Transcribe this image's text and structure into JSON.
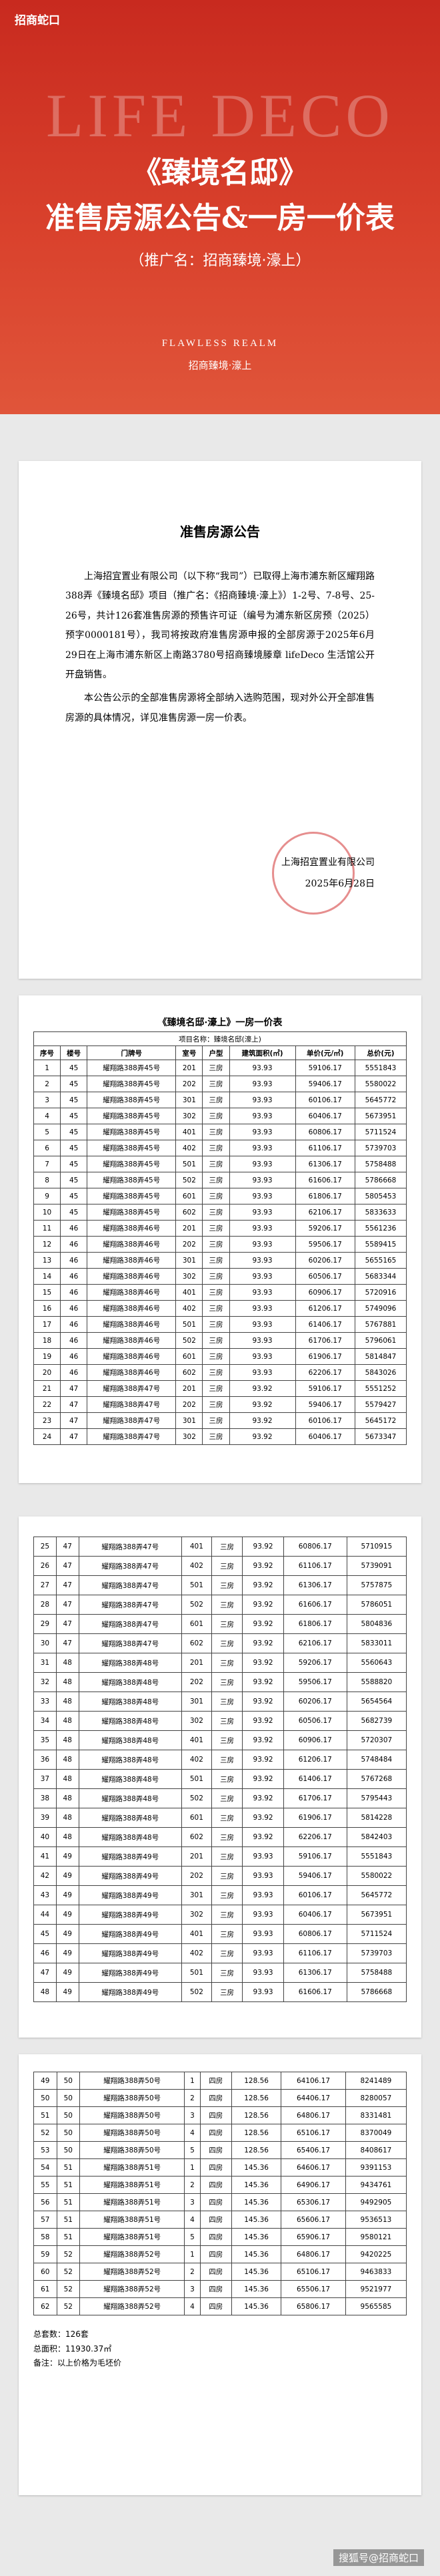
{
  "header": {
    "logo": "招商蛇口",
    "brand_en": "LIFE DECO",
    "title_line1": "《臻境名邸》",
    "title_line2": "准售房源公告&一房一价表",
    "subtitle": "（推广名：招商臻境·濠上）",
    "brand_en2": "FLAWLESS REALM",
    "brand_cn": "招商臻境·濠上"
  },
  "notice": {
    "title": "准售房源公告",
    "paragraphs": [
      "上海招宜置业有限公司（以下称“我司”）已取得上海市浦东新区耀翔路388弄《臻境名邸》项目（推广名：《招商臻境·濠上》）1-2号、7-8号、25-26号，共计126套准售房源的预售许可证（编号为浦东新区房预（2025）预字0000181号），我司将按政府准售房源申报的全部房源于2025年6月29日在上海市浦东新区上南路3780号招商臻境滕章 lifeDeco 生活馆公开开盘销售。",
      "本公告公示的全部准售房源将全部纳入选购范围，现对外公开全部准售房源的具体情况，详见准售房源一房一价表。"
    ],
    "company": "上海招宜置业有限公司",
    "date": "2025年6月28日"
  },
  "price_table": {
    "title": "《臻境名邸·濠上》一房一价表",
    "project": "项目名称：臻境名邸(濠上)",
    "columns": [
      "序号",
      "楼号",
      "门牌号",
      "室号",
      "户型",
      "建筑面积(㎡)",
      "单价(元/㎡)",
      "总价(元)"
    ],
    "pages": [
      {
        "rows": [
          [
            "1",
            "45",
            "耀翔路388弄45号",
            "201",
            "三房",
            "93.93",
            "59106.17",
            "5551843"
          ],
          [
            "2",
            "45",
            "耀翔路388弄45号",
            "202",
            "三房",
            "93.93",
            "59406.17",
            "5580022"
          ],
          [
            "3",
            "45",
            "耀翔路388弄45号",
            "301",
            "三房",
            "93.93",
            "60106.17",
            "5645772"
          ],
          [
            "4",
            "45",
            "耀翔路388弄45号",
            "302",
            "三房",
            "93.93",
            "60406.17",
            "5673951"
          ],
          [
            "5",
            "45",
            "耀翔路388弄45号",
            "401",
            "三房",
            "93.93",
            "60806.17",
            "5711524"
          ],
          [
            "6",
            "45",
            "耀翔路388弄45号",
            "402",
            "三房",
            "93.93",
            "61106.17",
            "5739703"
          ],
          [
            "7",
            "45",
            "耀翔路388弄45号",
            "501",
            "三房",
            "93.93",
            "61306.17",
            "5758488"
          ],
          [
            "8",
            "45",
            "耀翔路388弄45号",
            "502",
            "三房",
            "93.93",
            "61606.17",
            "5786668"
          ],
          [
            "9",
            "45",
            "耀翔路388弄45号",
            "601",
            "三房",
            "93.93",
            "61806.17",
            "5805453"
          ],
          [
            "10",
            "45",
            "耀翔路388弄45号",
            "602",
            "三房",
            "93.93",
            "62106.17",
            "5833633"
          ],
          [
            "11",
            "46",
            "耀翔路388弄46号",
            "201",
            "三房",
            "93.93",
            "59206.17",
            "5561236"
          ],
          [
            "12",
            "46",
            "耀翔路388弄46号",
            "202",
            "三房",
            "93.93",
            "59506.17",
            "5589415"
          ],
          [
            "13",
            "46",
            "耀翔路388弄46号",
            "301",
            "三房",
            "93.93",
            "60206.17",
            "5655165"
          ],
          [
            "14",
            "46",
            "耀翔路388弄46号",
            "302",
            "三房",
            "93.93",
            "60506.17",
            "5683344"
          ],
          [
            "15",
            "46",
            "耀翔路388弄46号",
            "401",
            "三房",
            "93.93",
            "60906.17",
            "5720916"
          ],
          [
            "16",
            "46",
            "耀翔路388弄46号",
            "402",
            "三房",
            "93.93",
            "61206.17",
            "5749096"
          ],
          [
            "17",
            "46",
            "耀翔路388弄46号",
            "501",
            "三房",
            "93.93",
            "61406.17",
            "5767881"
          ],
          [
            "18",
            "46",
            "耀翔路388弄46号",
            "502",
            "三房",
            "93.93",
            "61706.17",
            "5796061"
          ],
          [
            "19",
            "46",
            "耀翔路388弄46号",
            "601",
            "三房",
            "93.93",
            "61906.17",
            "5814847"
          ],
          [
            "20",
            "46",
            "耀翔路388弄46号",
            "602",
            "三房",
            "93.93",
            "62206.17",
            "5843026"
          ],
          [
            "21",
            "47",
            "耀翔路388弄47号",
            "201",
            "三房",
            "93.92",
            "59106.17",
            "5551252"
          ],
          [
            "22",
            "47",
            "耀翔路388弄47号",
            "202",
            "三房",
            "93.92",
            "59406.17",
            "5579427"
          ],
          [
            "23",
            "47",
            "耀翔路388弄47号",
            "301",
            "三房",
            "93.92",
            "60106.17",
            "5645172"
          ],
          [
            "24",
            "47",
            "耀翔路388弄47号",
            "302",
            "三房",
            "93.92",
            "60406.17",
            "5673347"
          ]
        ]
      },
      {
        "rows": [
          [
            "25",
            "47",
            "耀翔路388弄47号",
            "401",
            "三房",
            "93.92",
            "60806.17",
            "5710915"
          ],
          [
            "26",
            "47",
            "耀翔路388弄47号",
            "402",
            "三房",
            "93.92",
            "61106.17",
            "5739091"
          ],
          [
            "27",
            "47",
            "耀翔路388弄47号",
            "501",
            "三房",
            "93.92",
            "61306.17",
            "5757875"
          ],
          [
            "28",
            "47",
            "耀翔路388弄47号",
            "502",
            "三房",
            "93.92",
            "61606.17",
            "5786051"
          ],
          [
            "29",
            "47",
            "耀翔路388弄47号",
            "601",
            "三房",
            "93.92",
            "61806.17",
            "5804836"
          ],
          [
            "30",
            "47",
            "耀翔路388弄47号",
            "602",
            "三房",
            "93.92",
            "62106.17",
            "5833011"
          ],
          [
            "31",
            "48",
            "耀翔路388弄48号",
            "201",
            "三房",
            "93.92",
            "59206.17",
            "5560643"
          ],
          [
            "32",
            "48",
            "耀翔路388弄48号",
            "202",
            "三房",
            "93.92",
            "59506.17",
            "5588820"
          ],
          [
            "33",
            "48",
            "耀翔路388弄48号",
            "301",
            "三房",
            "93.92",
            "60206.17",
            "5654564"
          ],
          [
            "34",
            "48",
            "耀翔路388弄48号",
            "302",
            "三房",
            "93.92",
            "60506.17",
            "5682739"
          ],
          [
            "35",
            "48",
            "耀翔路388弄48号",
            "401",
            "三房",
            "93.92",
            "60906.17",
            "5720307"
          ],
          [
            "36",
            "48",
            "耀翔路388弄48号",
            "402",
            "三房",
            "93.92",
            "61206.17",
            "5748484"
          ],
          [
            "37",
            "48",
            "耀翔路388弄48号",
            "501",
            "三房",
            "93.92",
            "61406.17",
            "5767268"
          ],
          [
            "38",
            "48",
            "耀翔路388弄48号",
            "502",
            "三房",
            "93.92",
            "61706.17",
            "5795443"
          ],
          [
            "39",
            "48",
            "耀翔路388弄48号",
            "601",
            "三房",
            "93.92",
            "61906.17",
            "5814228"
          ],
          [
            "40",
            "48",
            "耀翔路388弄48号",
            "602",
            "三房",
            "93.92",
            "62206.17",
            "5842403"
          ],
          [
            "41",
            "49",
            "耀翔路388弄49号",
            "201",
            "三房",
            "93.93",
            "59106.17",
            "5551843"
          ],
          [
            "42",
            "49",
            "耀翔路388弄49号",
            "202",
            "三房",
            "93.93",
            "59406.17",
            "5580022"
          ],
          [
            "43",
            "49",
            "耀翔路388弄49号",
            "301",
            "三房",
            "93.93",
            "60106.17",
            "5645772"
          ],
          [
            "44",
            "49",
            "耀翔路388弄49号",
            "302",
            "三房",
            "93.93",
            "60406.17",
            "5673951"
          ],
          [
            "45",
            "49",
            "耀翔路388弄49号",
            "401",
            "三房",
            "93.93",
            "60806.17",
            "5711524"
          ],
          [
            "46",
            "49",
            "耀翔路388弄49号",
            "402",
            "三房",
            "93.93",
            "61106.17",
            "5739703"
          ],
          [
            "47",
            "49",
            "耀翔路388弄49号",
            "501",
            "三房",
            "93.93",
            "61306.17",
            "5758488"
          ],
          [
            "48",
            "49",
            "耀翔路388弄49号",
            "502",
            "三房",
            "93.93",
            "61606.17",
            "5786668"
          ]
        ]
      },
      {
        "rows": [
          [
            "49",
            "50",
            "耀翔路388弄50号",
            "1",
            "四房",
            "128.56",
            "64106.17",
            "8241489"
          ],
          [
            "50",
            "50",
            "耀翔路388弄50号",
            "2",
            "四房",
            "128.56",
            "64406.17",
            "8280057"
          ],
          [
            "51",
            "50",
            "耀翔路388弄50号",
            "3",
            "四房",
            "128.56",
            "64806.17",
            "8331481"
          ],
          [
            "52",
            "50",
            "耀翔路388弄50号",
            "4",
            "四房",
            "128.56",
            "65106.17",
            "8370049"
          ],
          [
            "53",
            "50",
            "耀翔路388弄50号",
            "5",
            "四房",
            "128.56",
            "65406.17",
            "8408617"
          ],
          [
            "54",
            "51",
            "耀翔路388弄51号",
            "1",
            "四房",
            "145.36",
            "64606.17",
            "9391153"
          ],
          [
            "55",
            "51",
            "耀翔路388弄51号",
            "2",
            "四房",
            "145.36",
            "64906.17",
            "9434761"
          ],
          [
            "56",
            "51",
            "耀翔路388弄51号",
            "3",
            "四房",
            "145.36",
            "65306.17",
            "9492905"
          ],
          [
            "57",
            "51",
            "耀翔路388弄51号",
            "4",
            "四房",
            "145.36",
            "65606.17",
            "9536513"
          ],
          [
            "58",
            "51",
            "耀翔路388弄51号",
            "5",
            "四房",
            "145.36",
            "65906.17",
            "9580121"
          ],
          [
            "59",
            "52",
            "耀翔路388弄52号",
            "1",
            "四房",
            "145.36",
            "64806.17",
            "9420225"
          ],
          [
            "60",
            "52",
            "耀翔路388弄52号",
            "2",
            "四房",
            "145.36",
            "65106.17",
            "9463833"
          ],
          [
            "61",
            "52",
            "耀翔路388弄52号",
            "3",
            "四房",
            "145.36",
            "65506.17",
            "9521977"
          ],
          [
            "62",
            "52",
            "耀翔路388弄52号",
            "4",
            "四房",
            "145.36",
            "65806.17",
            "9565585"
          ]
        ]
      }
    ],
    "summary": [
      "总套数：126套",
      "总面积：11930.37㎡",
      "备注：以上价格为毛坯价"
    ]
  },
  "watermark": "搜狐号@招商蛇口"
}
